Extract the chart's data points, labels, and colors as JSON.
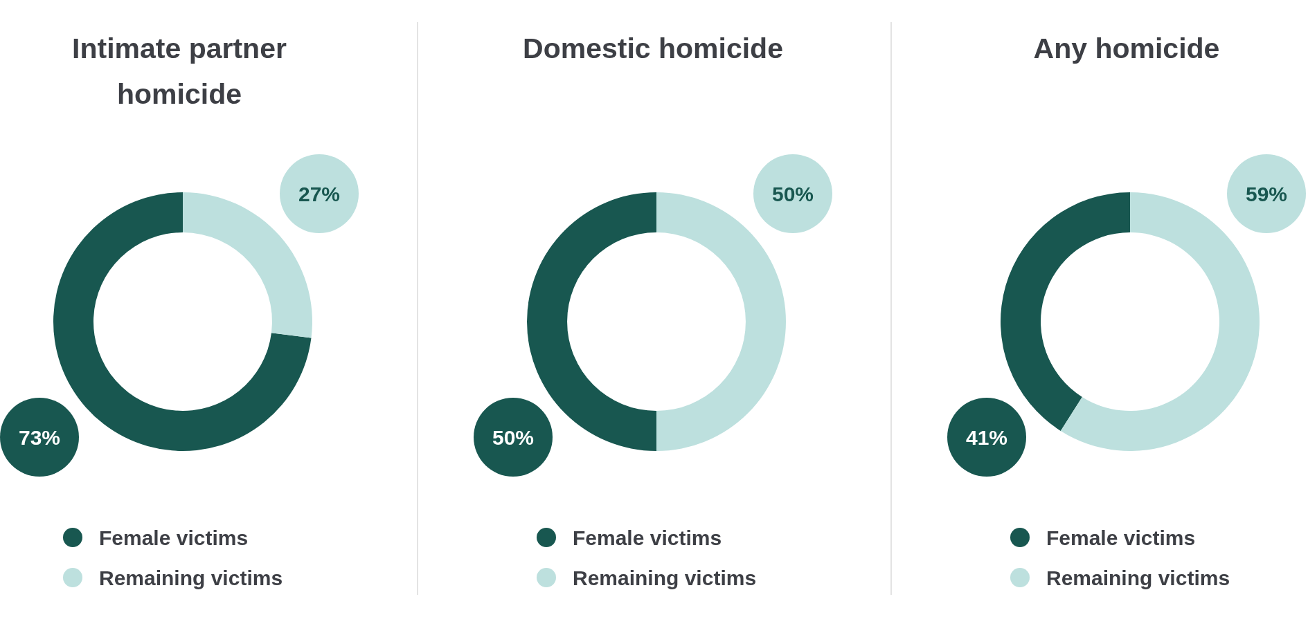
{
  "chart_data": [
    {
      "type": "donut",
      "title": "Intimate partner homicide",
      "categories": [
        "Female victims",
        "Remaining victims"
      ],
      "values": [
        73,
        27
      ],
      "value_labels": [
        "73%",
        "27%"
      ],
      "colors": [
        "#185750",
        "#bde0de"
      ],
      "legend": "bottom"
    },
    {
      "type": "donut",
      "title": "Domestic homicide",
      "categories": [
        "Female victims",
        "Remaining victims"
      ],
      "values": [
        50,
        50
      ],
      "value_labels": [
        "50%",
        "50%"
      ],
      "colors": [
        "#185750",
        "#bde0de"
      ],
      "legend": "bottom"
    },
    {
      "type": "donut",
      "title": "Any homicide",
      "categories": [
        "Female victims",
        "Remaining victims"
      ],
      "values": [
        41,
        59
      ],
      "value_labels": [
        "41%",
        "59%"
      ],
      "colors": [
        "#185750",
        "#bde0de"
      ],
      "legend": "bottom"
    }
  ]
}
